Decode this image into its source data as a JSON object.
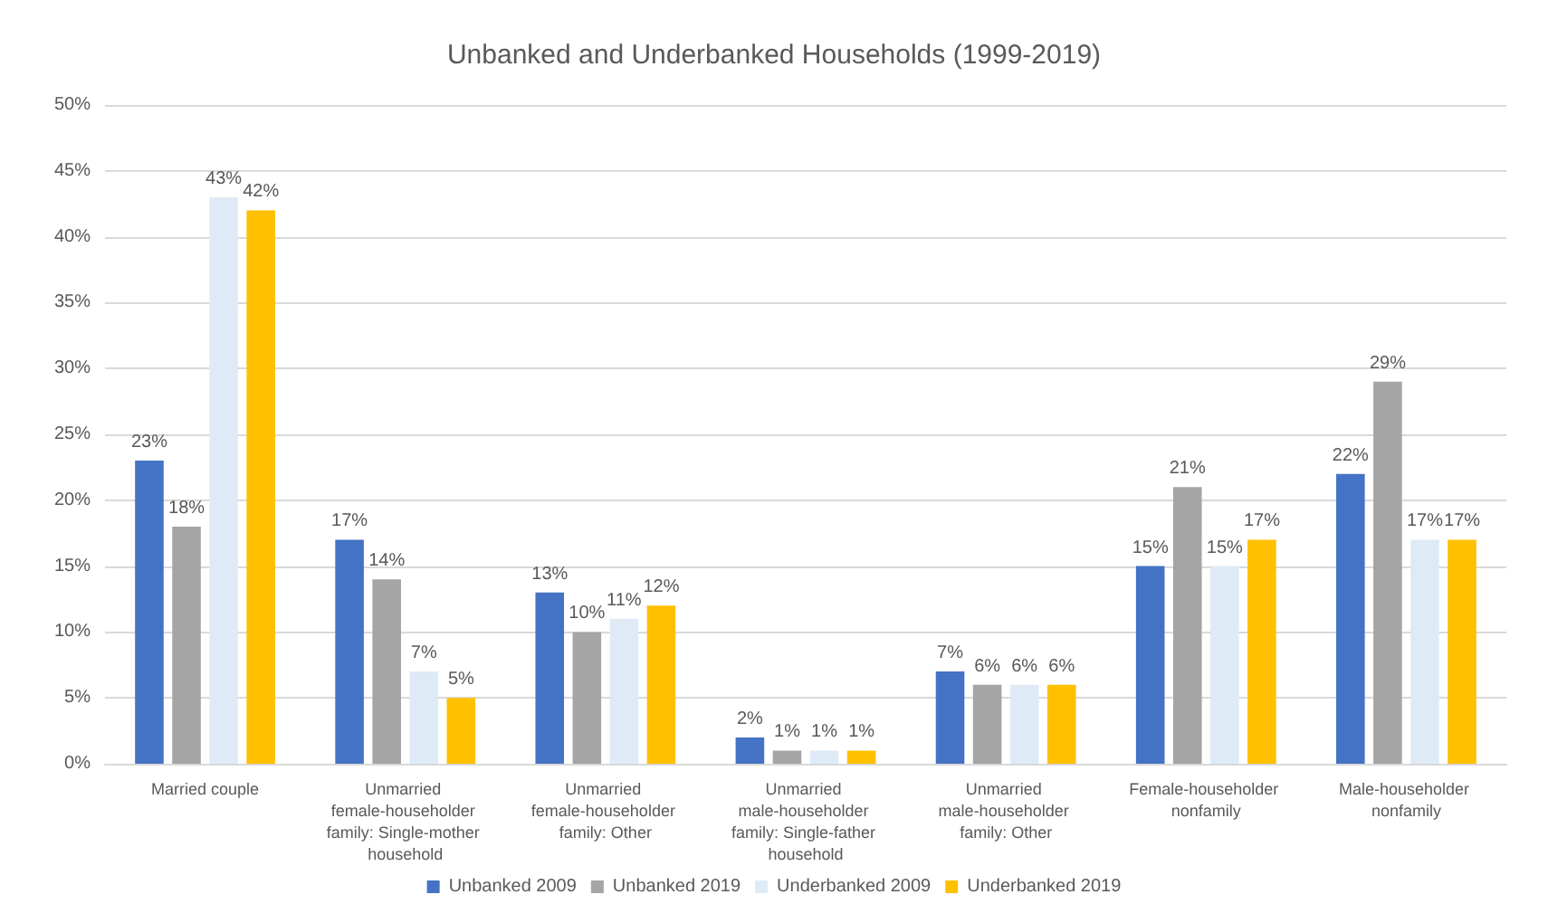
{
  "chart_data": {
    "type": "bar",
    "title": "Unbanked and Underbanked Households (1999-2019)",
    "categories": [
      "Married couple",
      "Unmarried female-householder family: Single-mother household",
      "Unmarried female-householder family: Other",
      "Unmarried male-householder family: Single-father household",
      "Unmarried male-householder family: Other",
      "Female-householder nonfamily",
      "Male-householder nonfamily"
    ],
    "series": [
      {
        "name": "Unbanked 2009",
        "color": "#4472c4",
        "values": [
          23,
          17,
          13,
          2,
          7,
          15,
          22
        ],
        "value_labels": [
          "23%",
          "17%",
          "13%",
          "2%",
          "7%",
          "15%",
          "22%"
        ]
      },
      {
        "name": "Unbanked 2019",
        "color": "#a5a5a5",
        "values": [
          18,
          14,
          10,
          1,
          6,
          21,
          29
        ],
        "value_labels": [
          "18%",
          "14%",
          "10%",
          "1%",
          "6%",
          "21%",
          "29%"
        ]
      },
      {
        "name": "Underbanked 2009",
        "color": "#deebf7",
        "values": [
          43,
          7,
          11,
          1,
          6,
          15,
          17
        ],
        "value_labels": [
          "43%",
          "7%",
          "11%",
          "1%",
          "6%",
          "15%",
          "17%"
        ]
      },
      {
        "name": "Underbanked 2019",
        "color": "#ffc000",
        "values": [
          42,
          5,
          12,
          1,
          6,
          17,
          17
        ],
        "value_labels": [
          "42%",
          "5%",
          "12%",
          "1%",
          "6%",
          "17%",
          "17%"
        ]
      }
    ],
    "ylim": [
      0,
      50
    ],
    "yticks": [
      {
        "value": 0,
        "label": "0%"
      },
      {
        "value": 5,
        "label": "5%"
      },
      {
        "value": 10,
        "label": "10%"
      },
      {
        "value": 15,
        "label": "15%"
      },
      {
        "value": 20,
        "label": "20%"
      },
      {
        "value": 25,
        "label": "25%"
      },
      {
        "value": 30,
        "label": "30%"
      },
      {
        "value": 35,
        "label": "35%"
      },
      {
        "value": 40,
        "label": "40%"
      },
      {
        "value": 45,
        "label": "45%"
      },
      {
        "value": 50,
        "label": "50%"
      }
    ],
    "grid": "y",
    "legend": "bottom"
  }
}
